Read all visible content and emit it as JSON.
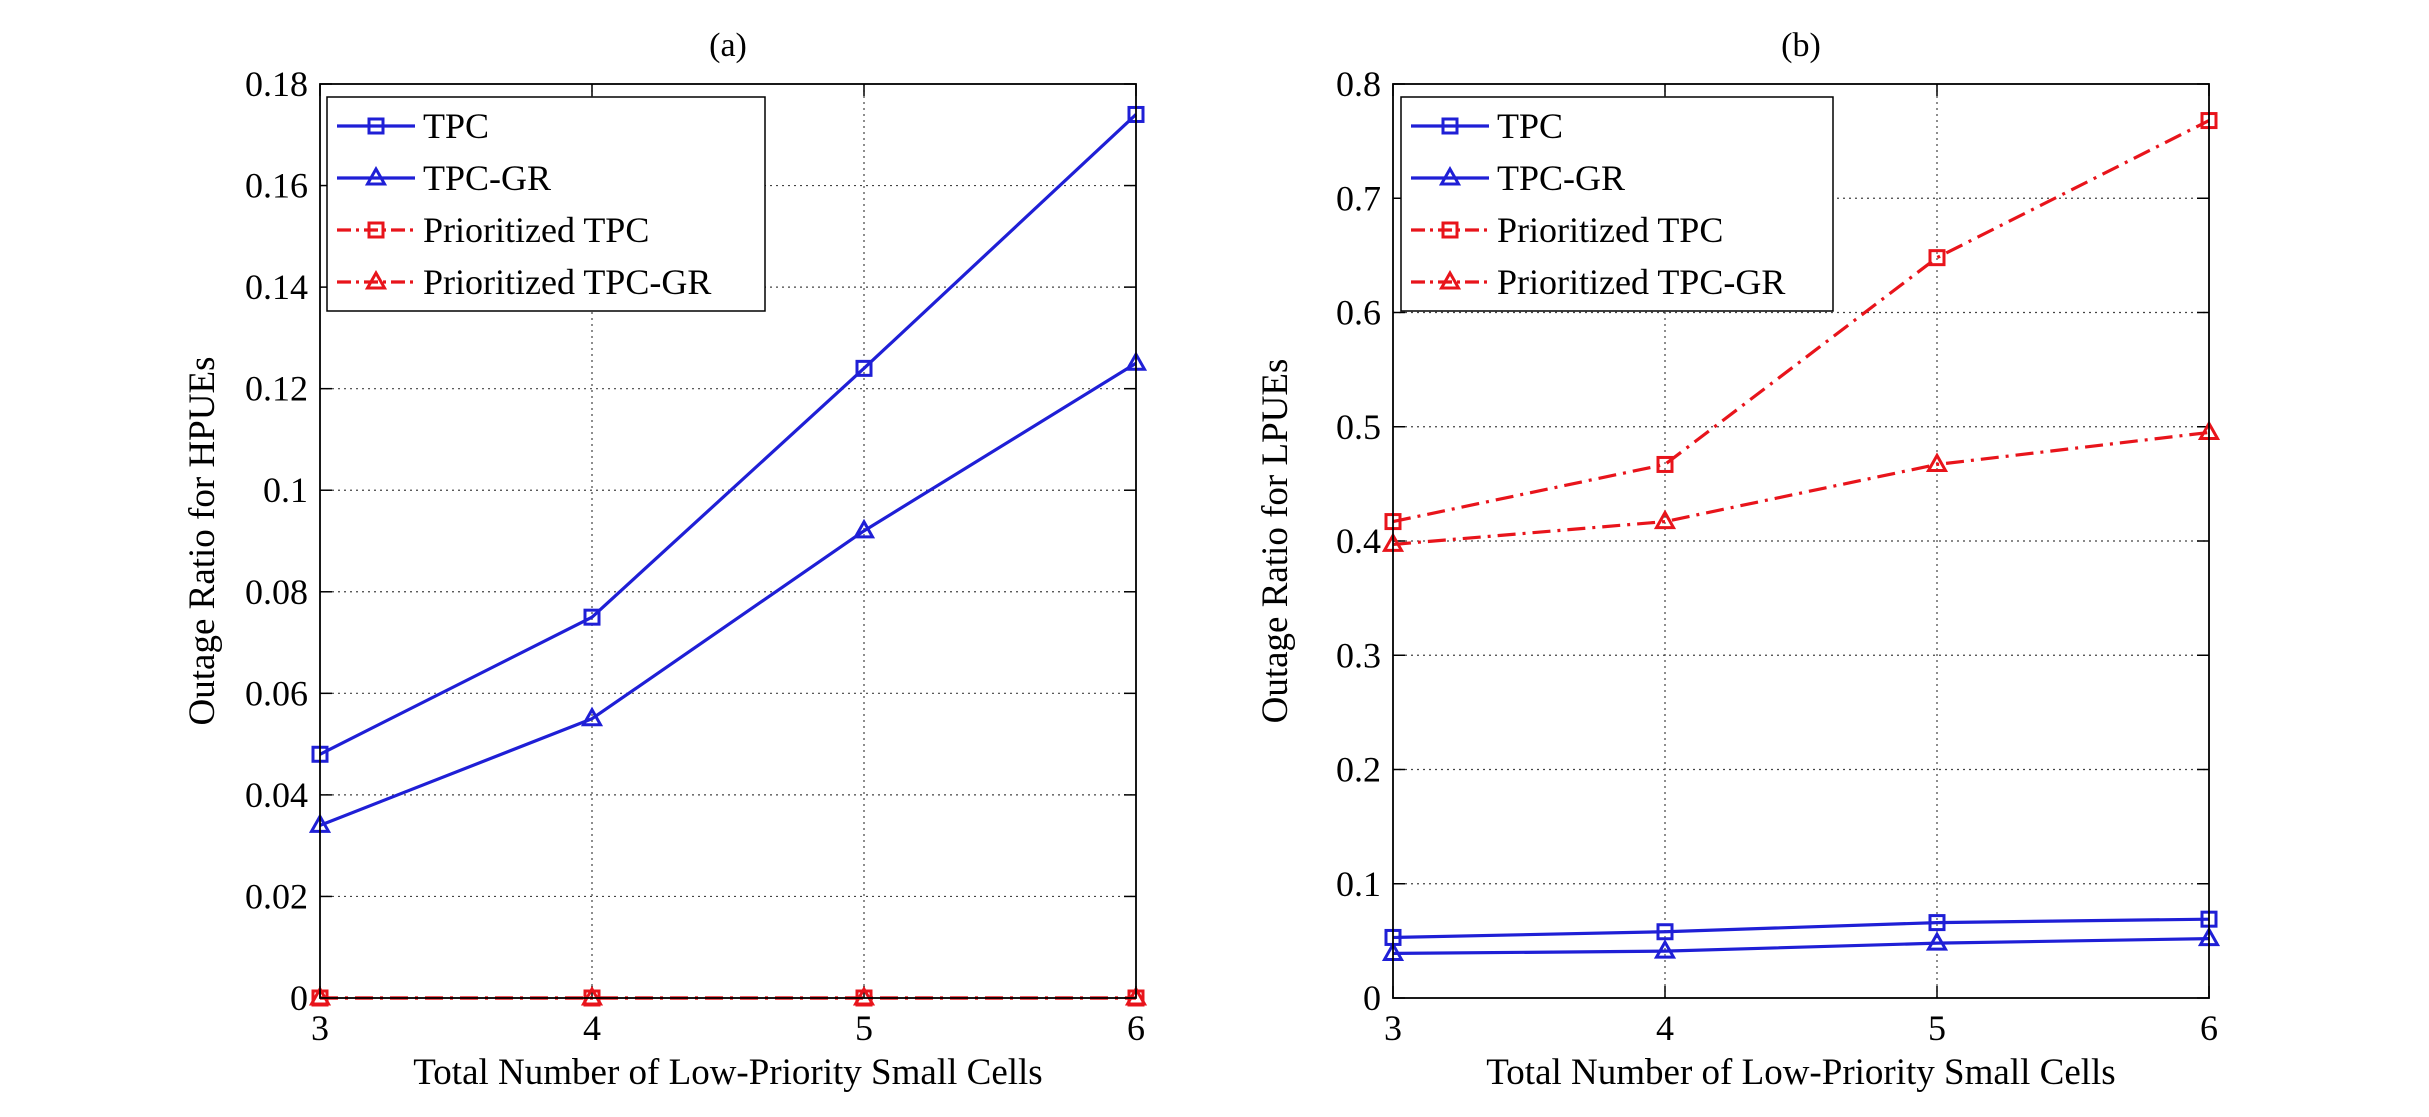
{
  "chart_data": [
    {
      "type": "line",
      "title": "(a)",
      "xlabel": "Total Number of Low-Priority Small Cells",
      "ylabel": "Outage Ratio for HPUEs",
      "x": [
        3,
        4,
        5,
        6
      ],
      "xlim": [
        3,
        6
      ],
      "ylim": [
        0,
        0.18
      ],
      "xticks": [
        3,
        4,
        5,
        6
      ],
      "xtick_labels": [
        "3",
        "4",
        "5",
        "6"
      ],
      "yticks": [
        0,
        0.02,
        0.04,
        0.06,
        0.08,
        0.1,
        0.12,
        0.14,
        0.16,
        0.18
      ],
      "ytick_labels": [
        "0",
        "0.02",
        "0.04",
        "0.06",
        "0.08",
        "0.1",
        "0.12",
        "0.14",
        "0.16",
        "0.18"
      ],
      "grid": true,
      "legend_position": "top-left",
      "series": [
        {
          "name": "TPC",
          "values": [
            0.048,
            0.075,
            0.124,
            0.174
          ],
          "color": "#1f1fd6",
          "style": "solid",
          "marker": "square"
        },
        {
          "name": "TPC-GR",
          "values": [
            0.034,
            0.055,
            0.092,
            0.125
          ],
          "color": "#1f1fd6",
          "style": "solid",
          "marker": "triangle"
        },
        {
          "name": "Prioritized TPC",
          "values": [
            0,
            0,
            0,
            0
          ],
          "color": "#e8141b",
          "style": "dashdot",
          "marker": "square"
        },
        {
          "name": "Prioritized TPC-GR",
          "values": [
            0,
            0,
            0,
            0
          ],
          "color": "#e8141b",
          "style": "dashdot",
          "marker": "triangle"
        }
      ]
    },
    {
      "type": "line",
      "title": "(b)",
      "xlabel": "Total Number of Low-Priority Small Cells",
      "ylabel": "Outage Ratio for LPUEs",
      "x": [
        3,
        4,
        5,
        6
      ],
      "xlim": [
        3,
        6
      ],
      "ylim": [
        0,
        0.8
      ],
      "xticks": [
        3,
        4,
        5,
        6
      ],
      "xtick_labels": [
        "3",
        "4",
        "5",
        "6"
      ],
      "yticks": [
        0,
        0.1,
        0.2,
        0.3,
        0.4,
        0.5,
        0.6,
        0.7,
        0.8
      ],
      "ytick_labels": [
        "0",
        "0.1",
        "0.2",
        "0.3",
        "0.4",
        "0.5",
        "0.6",
        "0.7",
        "0.8"
      ],
      "grid": true,
      "legend_position": "top-left",
      "series": [
        {
          "name": "TPC",
          "values": [
            0.053,
            0.058,
            0.066,
            0.069
          ],
          "color": "#1f1fd6",
          "style": "solid",
          "marker": "square"
        },
        {
          "name": "TPC-GR",
          "values": [
            0.039,
            0.041,
            0.048,
            0.052
          ],
          "color": "#1f1fd6",
          "style": "solid",
          "marker": "triangle"
        },
        {
          "name": "Prioritized TPC",
          "values": [
            0.417,
            0.467,
            0.648,
            0.768
          ],
          "color": "#e8141b",
          "style": "dashdot",
          "marker": "square"
        },
        {
          "name": "Prioritized TPC-GR",
          "values": [
            0.397,
            0.417,
            0.467,
            0.495
          ],
          "color": "#e8141b",
          "style": "dashdot",
          "marker": "triangle"
        }
      ]
    }
  ]
}
